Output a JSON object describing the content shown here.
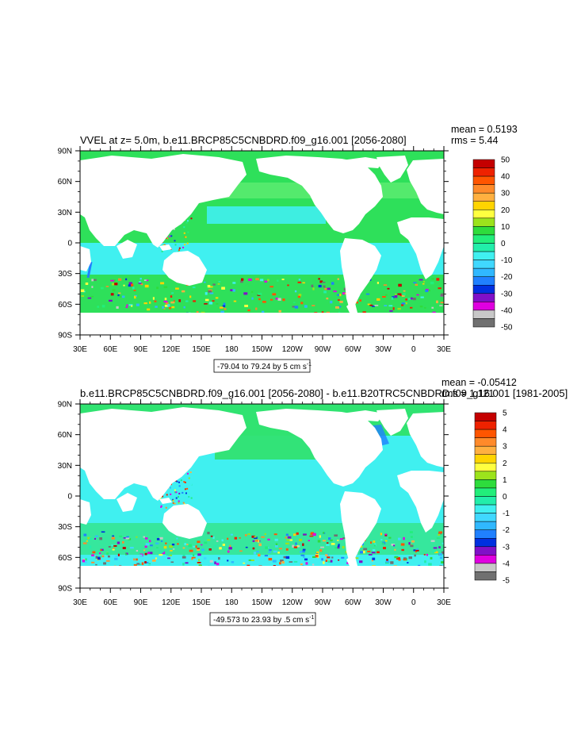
{
  "panels": [
    {
      "title": "VVEL at z=   5.0m, b.e11.BRCP85C5CNBDRD.f09_g16.001 [2056-2080]",
      "mean_text": "mean = 0.5193",
      "rms_text": "rms = 5.44",
      "info_main": "-79.04 to 79.24 by 5 cm s",
      "info_sup": "-1",
      "colorbar_labels": [
        "50",
        "40",
        "30",
        "20",
        "10",
        "0",
        "-10",
        "-20",
        "-30",
        "-40",
        "-50"
      ],
      "colorbar_colors": [
        "#c40000",
        "#ee2200",
        "#ff5500",
        "#ff8a2a",
        "#ffb040",
        "#ffd400",
        "#ffff40",
        "#9ce31c",
        "#2edc3c",
        "#22ee7a",
        "#22eeaa",
        "#40f0f0",
        "#40d8ff",
        "#30b8ff",
        "#2080ff",
        "#0030e0",
        "#8010c8",
        "#e000e0",
        "#c8c8c8",
        "#707070"
      ]
    },
    {
      "title": "b.e11.BRCP85C5CNBDRD.f09_g16.001 [2056-2080] - b.e11.B20TRC5CNBDRD.f09_g16.001 [1981-2005]",
      "mean_text": "mean = -0.05412",
      "rms_text": "rms = 1.121",
      "info_main": "-49.573 to 23.93 by .5 cm s",
      "info_sup": "-1",
      "colorbar_labels": [
        "5",
        "4",
        "3",
        "2",
        "1",
        "0",
        "-1",
        "-2",
        "-3",
        "-4",
        "-5"
      ],
      "colorbar_colors": [
        "#c40000",
        "#ee2200",
        "#ff5500",
        "#ff8a2a",
        "#ffb040",
        "#ffd400",
        "#ffff40",
        "#9ce31c",
        "#2edc3c",
        "#22ee7a",
        "#22eeaa",
        "#40f0f0",
        "#40d8ff",
        "#30b8ff",
        "#2080ff",
        "#0030e0",
        "#8010c8",
        "#e000e0",
        "#c8c8c8",
        "#707070"
      ]
    }
  ],
  "lat_labels": [
    "90N",
    "60N",
    "30N",
    "0",
    "30S",
    "60S",
    "90S"
  ],
  "lon_labels": [
    "30E",
    "60E",
    "90E",
    "120E",
    "150E",
    "180",
    "150W",
    "120W",
    "90W",
    "60W",
    "30W",
    "0",
    "30E"
  ],
  "colors": {
    "ocean_base": "#2ee05a",
    "ocean_cyan": "#40f0f0",
    "ocean_light": "#6ef07a",
    "land": "#ffffff"
  }
}
